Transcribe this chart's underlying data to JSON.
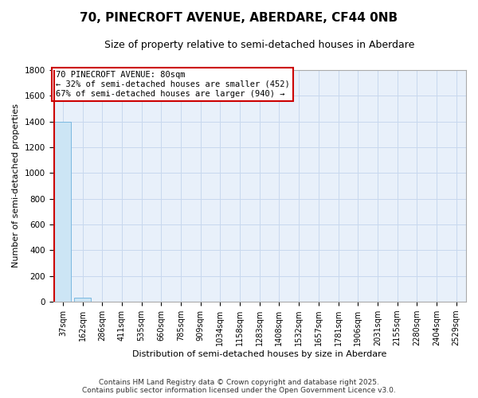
{
  "title1": "70, PINECROFT AVENUE, ABERDARE, CF44 0NB",
  "title2": "Size of property relative to semi-detached houses in Aberdare",
  "xlabel": "Distribution of semi-detached houses by size in Aberdare",
  "ylabel": "Number of semi-detached properties",
  "bar_labels": [
    "37sqm",
    "162sqm",
    "286sqm",
    "411sqm",
    "535sqm",
    "660sqm",
    "785sqm",
    "909sqm",
    "1034sqm",
    "1158sqm",
    "1283sqm",
    "1408sqm",
    "1532sqm",
    "1657sqm",
    "1781sqm",
    "1906sqm",
    "2031sqm",
    "2155sqm",
    "2280sqm",
    "2404sqm",
    "2529sqm"
  ],
  "bar_values": [
    1400,
    30,
    2,
    1,
    0,
    0,
    0,
    0,
    0,
    0,
    0,
    0,
    0,
    0,
    0,
    0,
    0,
    0,
    0,
    0,
    0
  ],
  "bar_color": "#cce5f5",
  "bar_edge_color": "#7ab8e0",
  "ylim": [
    0,
    1800
  ],
  "yticks": [
    0,
    200,
    400,
    600,
    800,
    1000,
    1200,
    1400,
    1600,
    1800
  ],
  "property_label": "70 PINECROFT AVENUE: 80sqm",
  "pct_smaller": 32,
  "count_smaller": 452,
  "pct_larger": 67,
  "count_larger": 940,
  "red_line_color": "#cc0000",
  "annotation_box_color": "#cc0000",
  "grid_color": "#c8d8ee",
  "background_color": "#e8f0fa",
  "footer_line1": "Contains HM Land Registry data © Crown copyright and database right 2025.",
  "footer_line2": "Contains public sector information licensed under the Open Government Licence v3.0.",
  "title1_fontsize": 11,
  "title2_fontsize": 9,
  "ylabel_fontsize": 8,
  "xlabel_fontsize": 8,
  "tick_fontsize": 7,
  "footer_fontsize": 6.5,
  "annot_fontsize": 7.5
}
